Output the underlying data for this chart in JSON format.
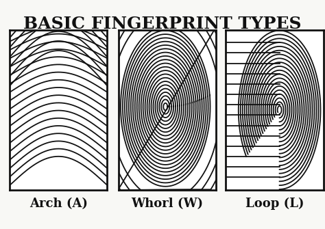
{
  "title": "BASIC FINGERPRINT TYPES",
  "title_fontsize": 18,
  "labels": [
    "Arch (A)",
    "Whorl (W)",
    "Loop (L)"
  ],
  "label_fontsize": 13,
  "bg_color": "#f5f5f0",
  "box_color": "#111111",
  "line_color": "#111111",
  "fig_bg": "#f8f8f5",
  "n_ridges": 18
}
